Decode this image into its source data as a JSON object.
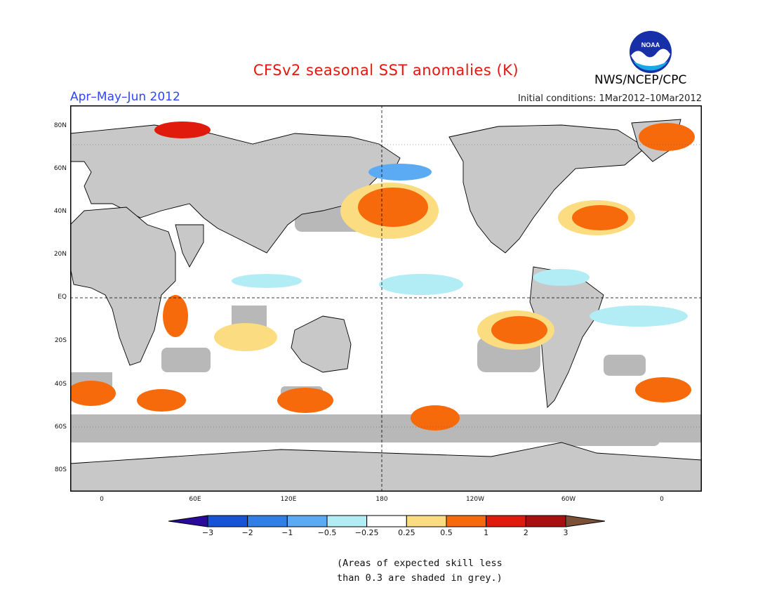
{
  "title": "CFSv2 seasonal SST anomalies (K)",
  "season": "Apr–May–Jun 2012",
  "initial_conditions": "Initial conditions: 1Mar2012–10Mar2012",
  "agency": "NWS/NCEP/CPC",
  "logo_text": "NOAA",
  "lat_labels": [
    "80N",
    "60N",
    "40N",
    "20N",
    "EQ",
    "20S",
    "40S",
    "60S",
    "80S"
  ],
  "lon_labels": [
    "0",
    "60E",
    "120E",
    "180",
    "120W",
    "60W",
    "0"
  ],
  "colorbar": {
    "levels": [
      "−3",
      "−2",
      "−1",
      "−0.5",
      "−0.25",
      "0.25",
      "0.5",
      "1",
      "2",
      "3"
    ],
    "colors": [
      "#2a0a9c",
      "#1753d6",
      "#2f7fe6",
      "#5aaaf4",
      "#b2ecf5",
      "#ffffff",
      "#fbdc80",
      "#f76a0c",
      "#e01b0e",
      "#a90f10",
      "#7b5037"
    ]
  },
  "colors": {
    "land": "#c8c8c8",
    "skill_grey": "#b4b4b4",
    "ocean": "#ffffff",
    "title": "#e8160c",
    "season": "#2f44ff"
  },
  "footnote_lines": [
    "(Areas of expected skill less",
    "than 0.3 are shaded in grey.)"
  ]
}
